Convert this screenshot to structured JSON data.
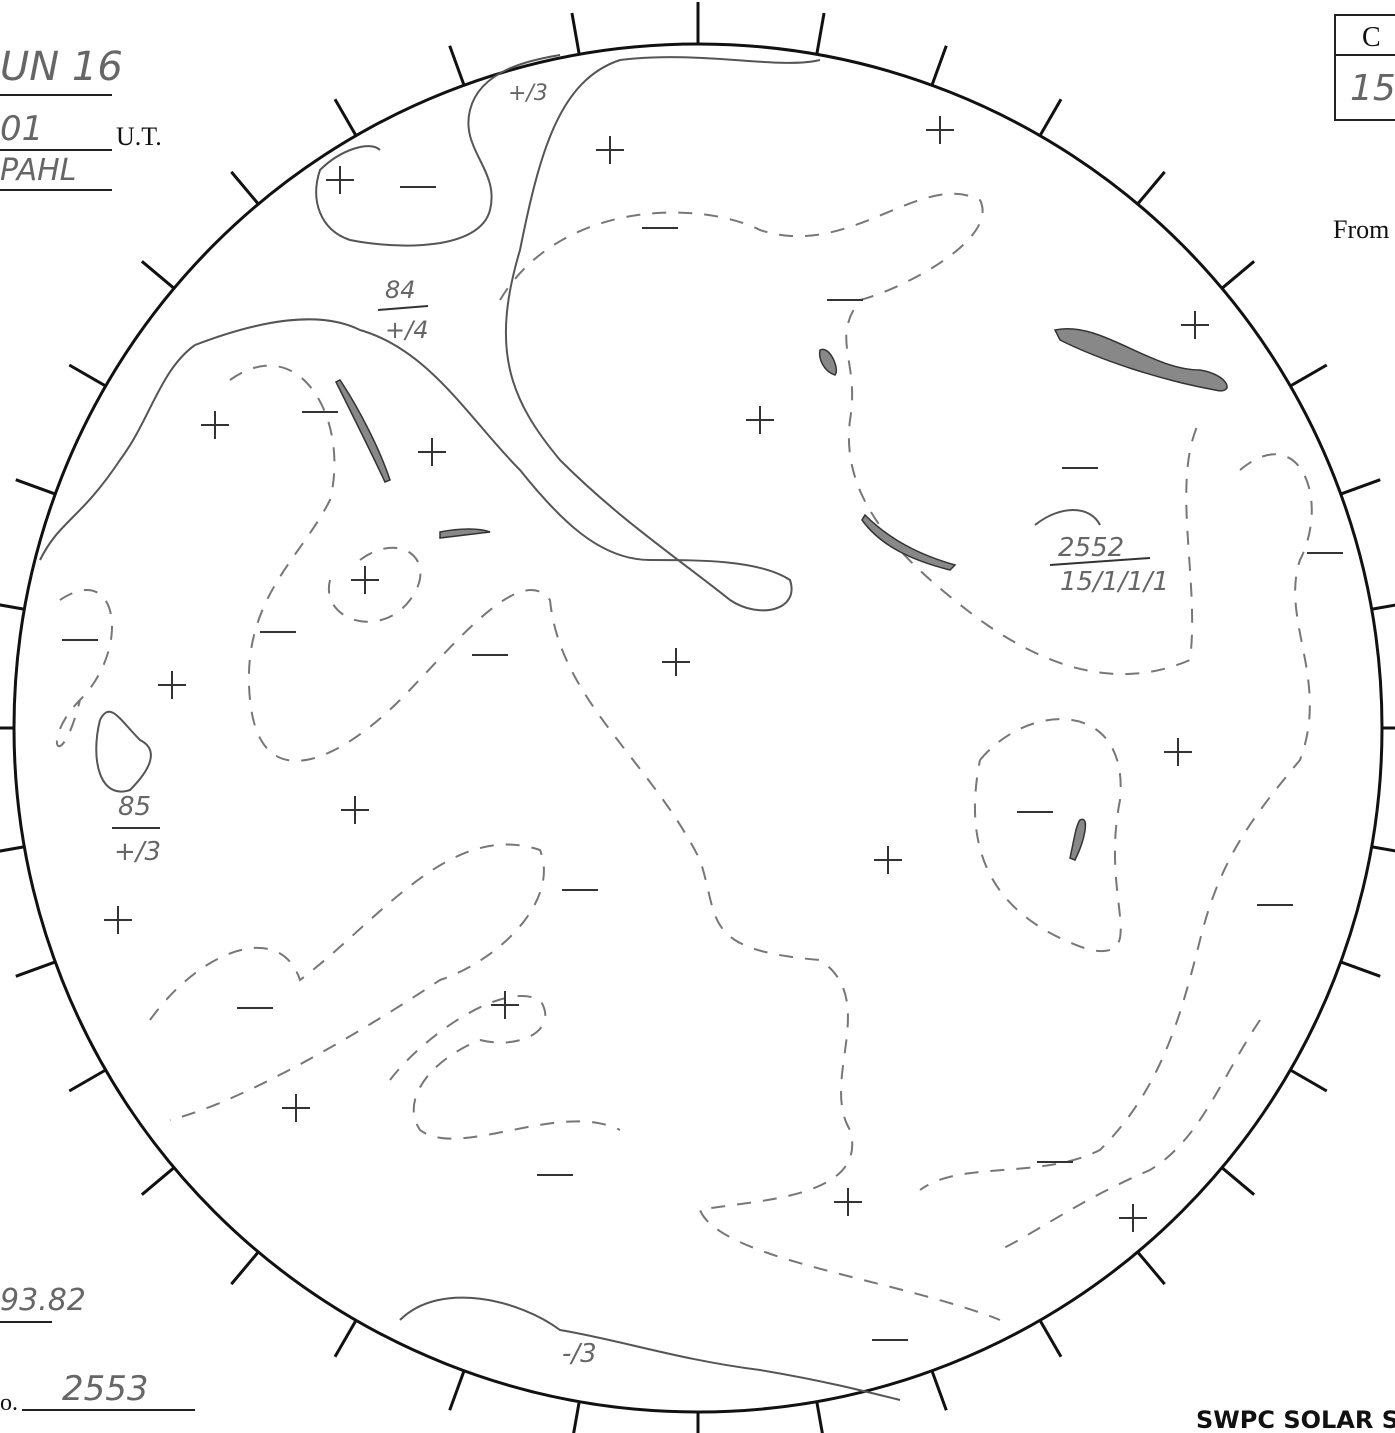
{
  "header": {
    "date": "UN 16",
    "time": "01",
    "time_unit": "U.T.",
    "observer": "PAHL"
  },
  "box": {
    "header": "C",
    "value": "15"
  },
  "from_label": "From",
  "annotations": {
    "region_84": {
      "number": "84",
      "class": "+/4"
    },
    "region_top": {
      "class": "+/3"
    },
    "region_85": {
      "number": "85",
      "class": "+/3"
    },
    "region_2552": {
      "number": "2552",
      "class": "15/1/1/1"
    },
    "region_bottom": {
      "class": "-/3"
    }
  },
  "footer": {
    "number": "93.82",
    "region_prefix": "o.",
    "region": "2553",
    "brand": "SWPC SOLAR S"
  }
}
